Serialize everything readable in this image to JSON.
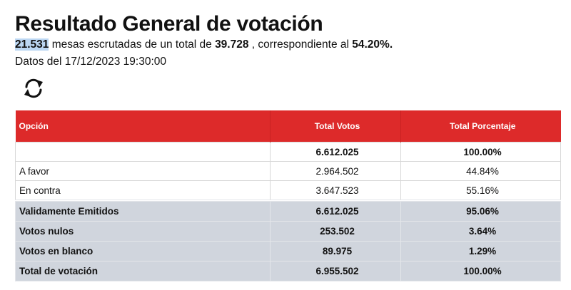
{
  "title": "Resultado General de votación",
  "summary": {
    "mesas_escrutadas": "21.531",
    "text1": " mesas escrutadas de un total de ",
    "mesas_total": "39.728",
    "text2": " , correspondiente al ",
    "porcentaje": "54.20%."
  },
  "datos": "Datos del 17/12/2023 19:30:00",
  "refresh_icon": "refresh-icon",
  "table": {
    "headers": [
      "Opción",
      "Total Votos",
      "Total Porcentaje"
    ],
    "rows": [
      [
        "",
        "6.612.025",
        "100.00%"
      ],
      [
        "A favor",
        "2.964.502",
        "44.84%"
      ],
      [
        "En contra",
        "3.647.523",
        "55.16%"
      ],
      [
        "Validamente Emitidos",
        "6.612.025",
        "95.06%"
      ],
      [
        "Votos nulos",
        "253.502",
        "3.64%"
      ],
      [
        "Votos en blanco",
        "89.975",
        "1.29%"
      ],
      [
        "Total de votación",
        "6.955.502",
        "100.00%"
      ]
    ]
  },
  "colors": {
    "header": "#dd2a2a",
    "highlight": "#bcd7f3",
    "summary_rows": "#d0d5dd"
  }
}
